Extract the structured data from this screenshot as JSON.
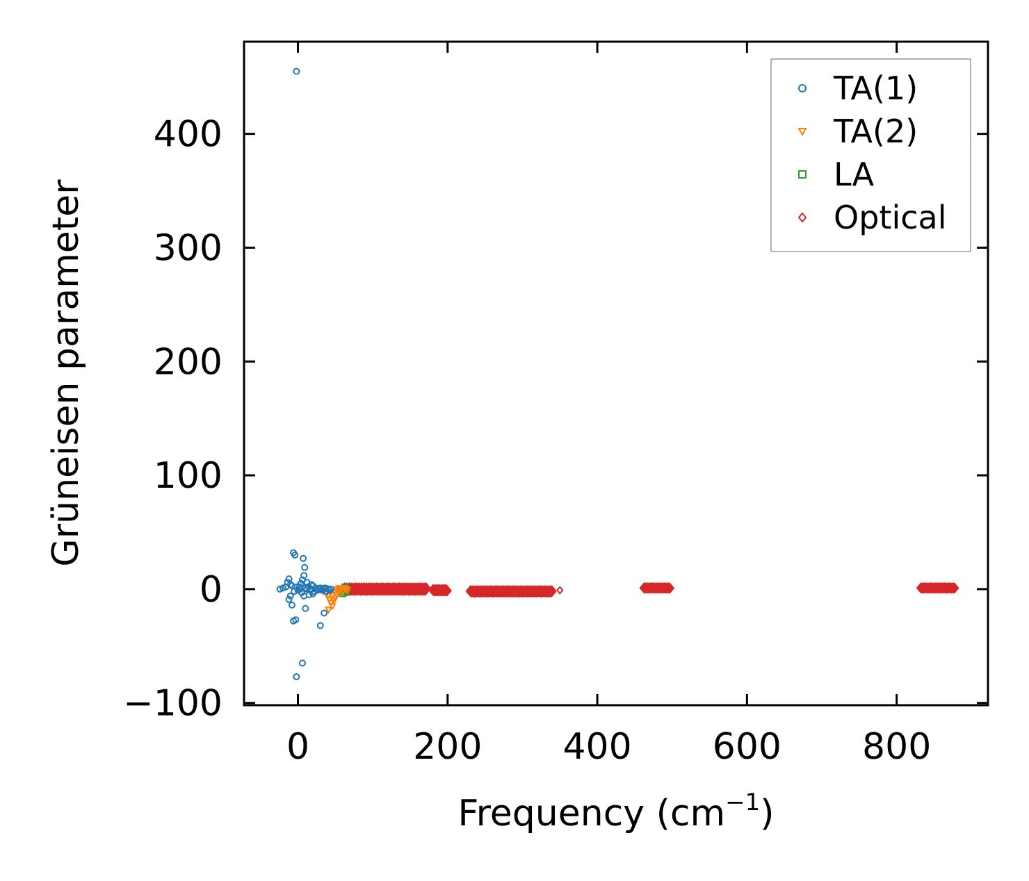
{
  "chart_data": {
    "type": "scatter",
    "title": "",
    "xlabel": "Frequency (cm",
    "xlabel_sup": "−1",
    "xlabel_close": ")",
    "ylabel": "Grüneisen parameter",
    "xlim": [
      -72,
      922
    ],
    "ylim": [
      -102,
      481
    ],
    "xticks": [
      0,
      200,
      400,
      600,
      800
    ],
    "xtick_labels": [
      "0",
      "200",
      "400",
      "600",
      "800"
    ],
    "yticks": [
      -100,
      0,
      100,
      200,
      300,
      400
    ],
    "ytick_labels": [
      "−100",
      "0",
      "100",
      "200",
      "300",
      "400"
    ],
    "grid": false,
    "legend_position": "top-right",
    "series": [
      {
        "name": "TA(1)",
        "marker": "circle",
        "color": "#1f77b4",
        "points": [
          [
            -2,
            455
          ],
          [
            -6,
            32
          ],
          [
            -4,
            30
          ],
          [
            7,
            27
          ],
          [
            9,
            19
          ],
          [
            8,
            12
          ],
          [
            6,
            8
          ],
          [
            -12,
            9
          ],
          [
            -14,
            6
          ],
          [
            -10,
            4
          ],
          [
            -16,
            2
          ],
          [
            -20,
            1
          ],
          [
            -24,
            0
          ],
          [
            -8,
            3
          ],
          [
            -5,
            -2
          ],
          [
            -10,
            -6
          ],
          [
            -12,
            -9
          ],
          [
            -8,
            -14
          ],
          [
            -6,
            -28
          ],
          [
            -3,
            -27
          ],
          [
            10,
            -17
          ],
          [
            35,
            -21
          ],
          [
            30,
            -32
          ],
          [
            6,
            -65
          ],
          [
            -2,
            -77
          ],
          [
            2,
            2
          ],
          [
            4,
            5
          ],
          [
            5,
            -3
          ],
          [
            8,
            -6
          ],
          [
            10,
            1
          ],
          [
            12,
            0
          ],
          [
            14,
            2
          ],
          [
            16,
            -1
          ],
          [
            18,
            0
          ],
          [
            20,
            3
          ],
          [
            22,
            -2
          ],
          [
            24,
            1
          ],
          [
            26,
            -1
          ],
          [
            28,
            0
          ],
          [
            30,
            1
          ],
          [
            32,
            -1
          ],
          [
            34,
            0
          ],
          [
            36,
            1
          ],
          [
            38,
            -2
          ],
          [
            40,
            0
          ],
          [
            42,
            -1
          ],
          [
            44,
            0
          ],
          [
            12,
            6
          ],
          [
            15,
            -5
          ],
          [
            18,
            4
          ],
          [
            20,
            -4
          ],
          [
            3,
            0
          ],
          [
            0,
            -1
          ],
          [
            -1,
            2
          ]
        ]
      },
      {
        "name": "TA(2)",
        "marker": "triangle-down",
        "color": "#ff7f0e",
        "points": [
          [
            30,
            0
          ],
          [
            34,
            -2
          ],
          [
            36,
            1
          ],
          [
            38,
            -4
          ],
          [
            40,
            -6
          ],
          [
            41,
            -18
          ],
          [
            42,
            -9
          ],
          [
            44,
            -12
          ],
          [
            46,
            -15
          ],
          [
            48,
            -10
          ],
          [
            50,
            -8
          ],
          [
            52,
            -5
          ],
          [
            54,
            -3
          ],
          [
            56,
            -1
          ],
          [
            58,
            0
          ],
          [
            60,
            -2
          ],
          [
            62,
            1
          ],
          [
            64,
            0
          ],
          [
            66,
            -1
          ],
          [
            44,
            -3
          ],
          [
            48,
            -2
          ],
          [
            52,
            0
          ],
          [
            56,
            1
          ]
        ]
      },
      {
        "name": "LA",
        "marker": "square",
        "color": "#2ca02c",
        "points": [
          [
            56,
            -2
          ],
          [
            58,
            0
          ],
          [
            60,
            -4
          ],
          [
            62,
            -1
          ],
          [
            63,
            2
          ],
          [
            64,
            -3
          ],
          [
            65,
            0
          ]
        ]
      },
      {
        "name": "Optical",
        "marker": "diamond",
        "color": "#d62728",
        "points": [
          [
            350,
            -1
          ]
        ],
        "bands": [
          {
            "x_start": 62,
            "x_end": 172,
            "y": 0,
            "spread": 3
          },
          {
            "x_start": 180,
            "x_end": 200,
            "y": -1,
            "spread": 2
          },
          {
            "x_start": 230,
            "x_end": 340,
            "y": -2,
            "spread": 2
          },
          {
            "x_start": 462,
            "x_end": 498,
            "y": 1,
            "spread": 1
          },
          {
            "x_start": 832,
            "x_end": 878,
            "y": 1,
            "spread": 1
          }
        ]
      }
    ]
  }
}
